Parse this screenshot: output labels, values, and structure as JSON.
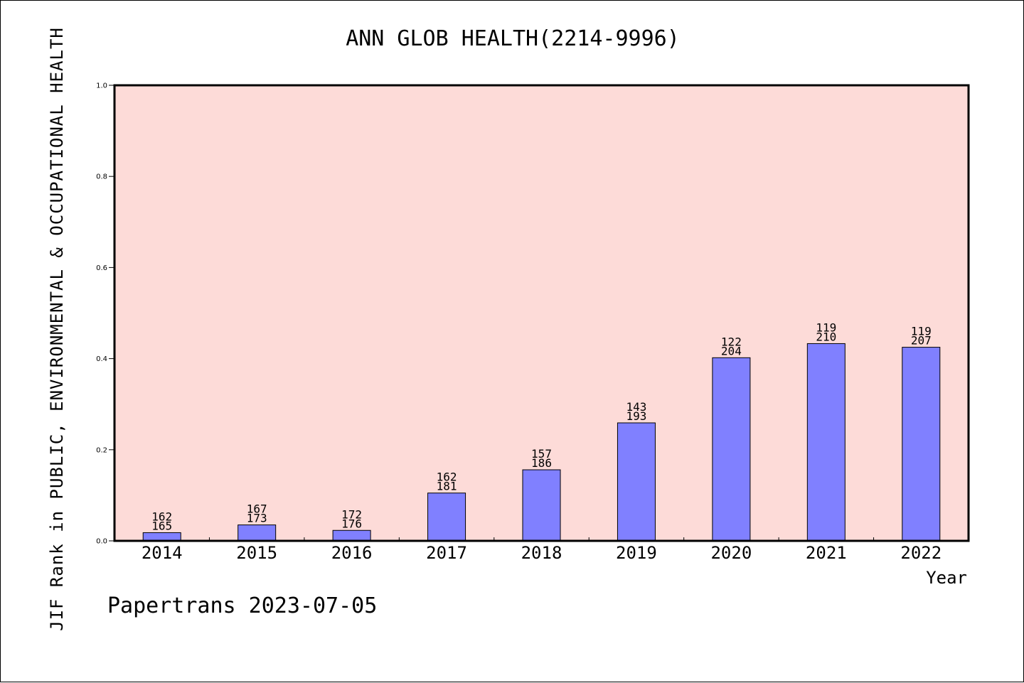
{
  "chart_data": {
    "type": "bar",
    "title": "ANN GLOB HEALTH(2214-9996)",
    "ylabel": "JIF Rank in PUBLIC, ENVIRONMENTAL & OCCUPATIONAL HEALTH",
    "xlabel": "Year",
    "footer": "Papertrans 2023-07-05",
    "categories": [
      "2014",
      "2015",
      "2016",
      "2017",
      "2018",
      "2019",
      "2020",
      "2021",
      "2022"
    ],
    "values": [
      0.018,
      0.035,
      0.023,
      0.105,
      0.156,
      0.259,
      0.402,
      0.433,
      0.425
    ],
    "rank_labels": [
      [
        "162",
        "165"
      ],
      [
        "167",
        "173"
      ],
      [
        "172",
        "176"
      ],
      [
        "162",
        "181"
      ],
      [
        "157",
        "186"
      ],
      [
        "143",
        "193"
      ],
      [
        "122",
        "204"
      ],
      [
        "119",
        "210"
      ],
      [
        "119",
        "207"
      ]
    ],
    "ylim": [
      0,
      1.0
    ],
    "yticks": [
      "0.0",
      "0.2",
      "0.4",
      "0.6",
      "0.8",
      "1.0"
    ],
    "grid": false,
    "colors": {
      "plot_background": "#fddbd8",
      "bar_fill": "#8080ff",
      "bar_stroke": "#000000",
      "axis": "#000000"
    }
  }
}
